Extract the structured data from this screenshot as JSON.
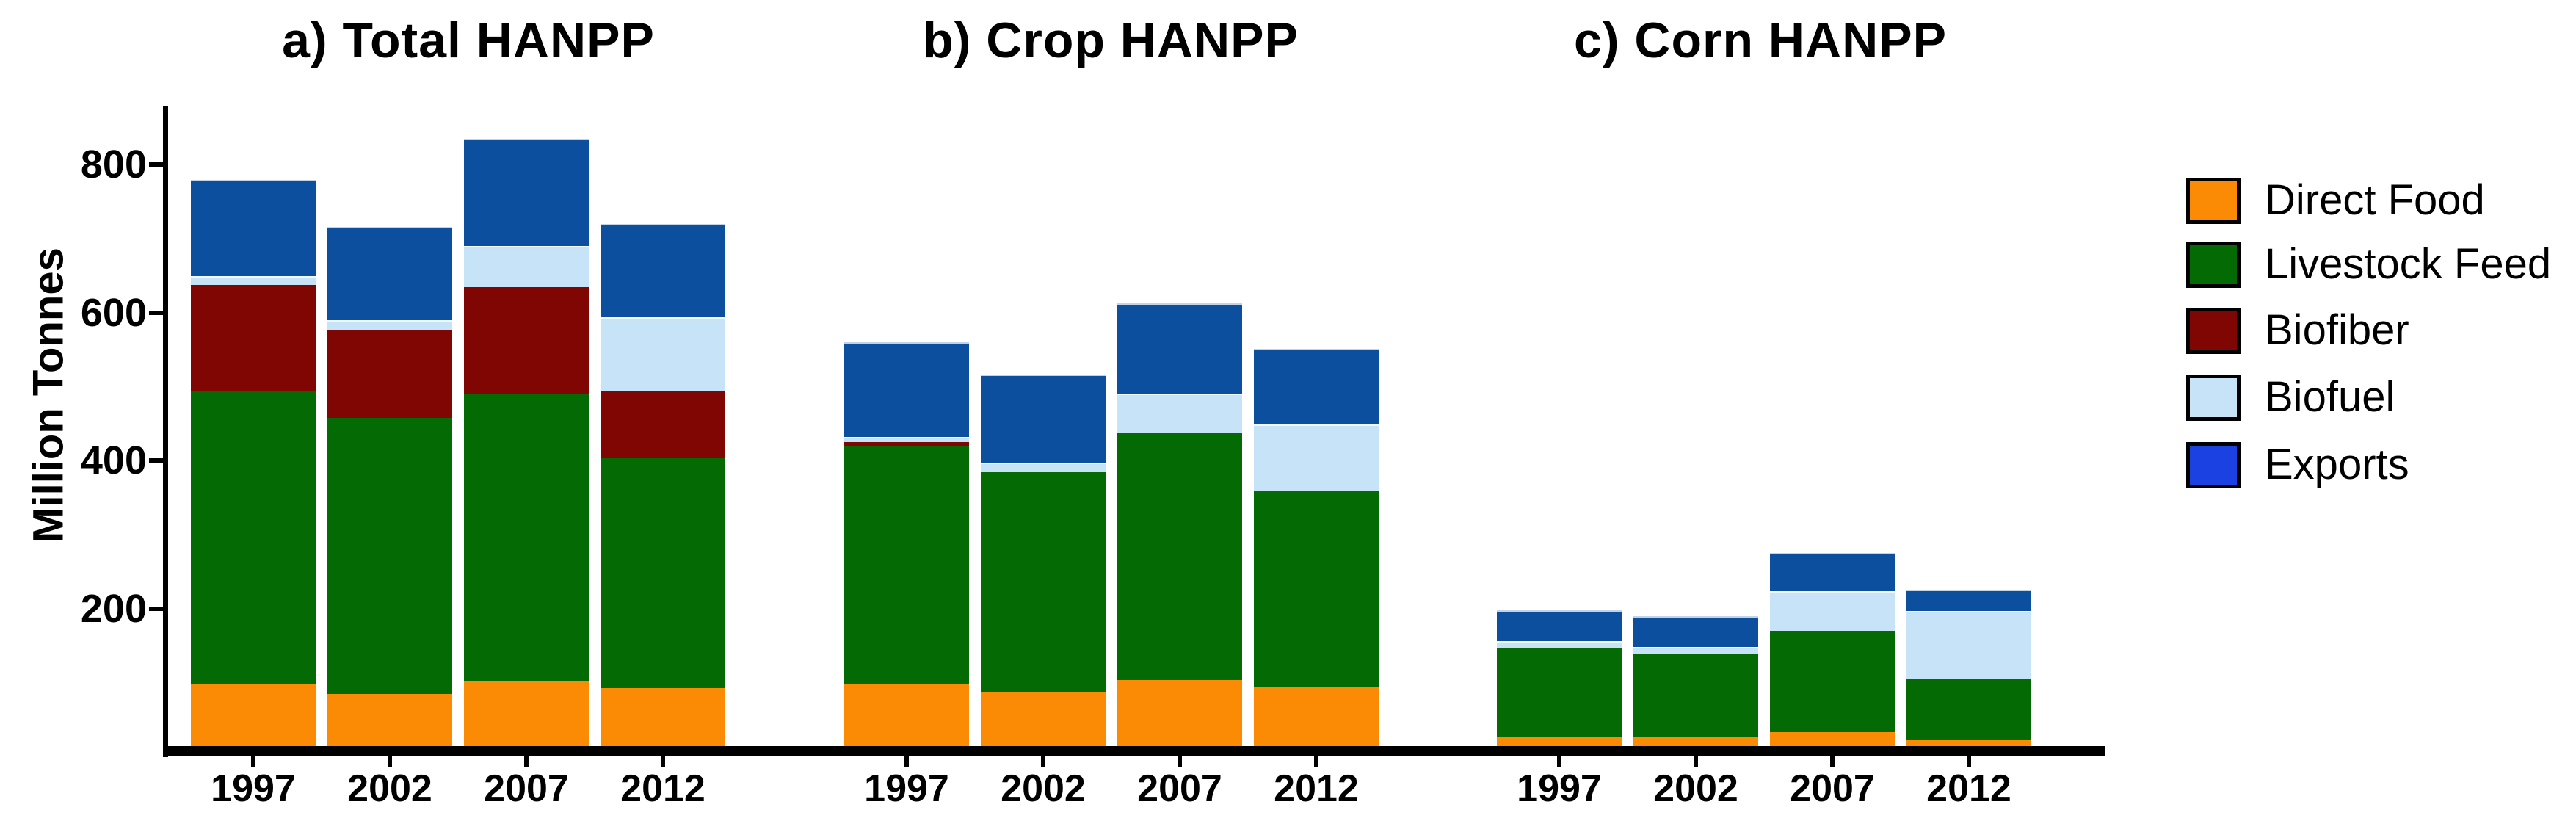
{
  "figure": {
    "background": "#ffffff"
  },
  "y_axis": {
    "label": "Million Tonnes",
    "ticks": [
      "200",
      "400",
      "600",
      "800"
    ],
    "tick_values": [
      200,
      400,
      600,
      800
    ],
    "range": [
      0,
      870
    ]
  },
  "x_axis": {
    "years": [
      "1997",
      "2002",
      "2007",
      "2012"
    ]
  },
  "colors": {
    "direct_food": "#FB8B05",
    "livestock_feed": "#046B04",
    "biofiber": "#800603",
    "biofuel": "#C7E3F8",
    "exports_bar": "#0B4F9E",
    "exports_legend": "#1B41E3",
    "axis": "#000000"
  },
  "legend": {
    "items": [
      {
        "label": "Direct Food",
        "color": "#FB8B05"
      },
      {
        "label": "Livestock Feed",
        "color": "#046B04"
      },
      {
        "label": "Biofiber",
        "color": "#800603"
      },
      {
        "label": "Biofuel",
        "color": "#C7E3F8"
      },
      {
        "label": "Exports",
        "color": "#1B41E3"
      }
    ]
  },
  "chart_data": [
    {
      "type": "bar",
      "stacked": true,
      "title": "a) Total HANPP",
      "categories": [
        "1997",
        "2002",
        "2007",
        "2012"
      ],
      "series": [
        {
          "name": "Direct Food",
          "values": [
            97,
            84,
            102,
            92
          ]
        },
        {
          "name": "Livestock Feed",
          "values": [
            398,
            374,
            388,
            311
          ]
        },
        {
          "name": "Biofiber",
          "values": [
            143,
            118,
            145,
            92
          ]
        },
        {
          "name": "Biofuel",
          "values": [
            11,
            14,
            55,
            99
          ]
        },
        {
          "name": "Exports",
          "values": [
            131,
            126,
            145,
            126
          ]
        }
      ],
      "totals": [
        780,
        716,
        835,
        720
      ],
      "ylabel": "Million Tonnes",
      "ylim": [
        0,
        870
      ],
      "grid": false,
      "legend_position": "right"
    },
    {
      "type": "bar",
      "stacked": true,
      "title": "b) Crop HANPP",
      "categories": [
        "1997",
        "2002",
        "2007",
        "2012"
      ],
      "series": [
        {
          "name": "Direct Food",
          "values": [
            98,
            86,
            103,
            94
          ]
        },
        {
          "name": "Livestock Feed",
          "values": [
            322,
            298,
            334,
            264
          ]
        },
        {
          "name": "Biofiber",
          "values": [
            5,
            0,
            0,
            0
          ]
        },
        {
          "name": "Biofuel",
          "values": [
            7,
            13,
            54,
            91
          ]
        },
        {
          "name": "Exports",
          "values": [
            128,
            119,
            122,
            102
          ]
        }
      ],
      "totals": [
        560,
        516,
        613,
        551
      ],
      "ylabel": "Million Tonnes",
      "ylim": [
        0,
        870
      ],
      "grid": false
    },
    {
      "type": "bar",
      "stacked": true,
      "title": "c) Corn HANPP",
      "categories": [
        "1997",
        "2002",
        "2007",
        "2012"
      ],
      "series": [
        {
          "name": "Direct Food",
          "values": [
            27,
            26,
            33,
            22
          ]
        },
        {
          "name": "Livestock Feed",
          "values": [
            119,
            112,
            137,
            83
          ]
        },
        {
          "name": "Biofiber",
          "values": [
            0,
            0,
            0,
            0
          ]
        },
        {
          "name": "Biofuel",
          "values": [
            10,
            10,
            53,
            92
          ]
        },
        {
          "name": "Exports",
          "values": [
            42,
            42,
            52,
            28
          ]
        }
      ],
      "totals": [
        198,
        190,
        275,
        225
      ],
      "ylabel": "Million Tonnes",
      "ylim": [
        0,
        870
      ],
      "grid": false
    }
  ]
}
